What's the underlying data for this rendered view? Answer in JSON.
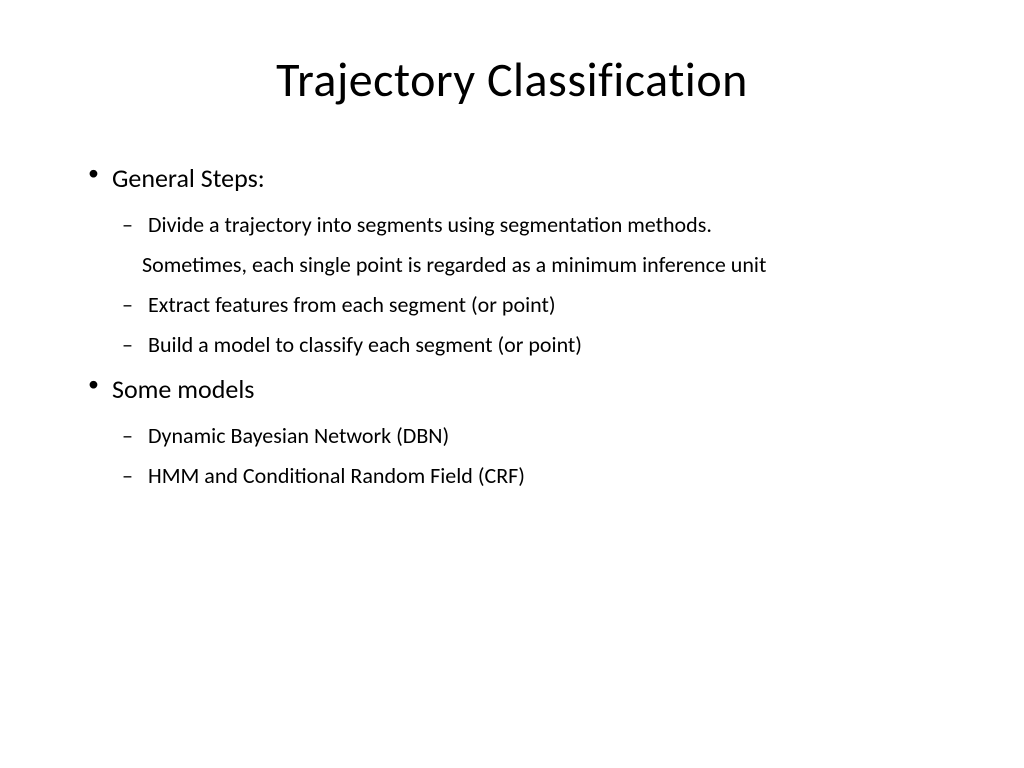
{
  "slide": {
    "title": "Trajectory Classification",
    "bullets": [
      {
        "text": "General Steps:",
        "children": [
          {
            "text": "Divide a trajectory into segments using segmentation methods.",
            "continuation": "Sometimes, each single point is regarded as a minimum inference unit"
          },
          {
            "text": "Extract features from each segment (or point)"
          },
          {
            "text": "Build a model to classify each segment (or point)"
          }
        ]
      },
      {
        "text": "Some models",
        "children": [
          {
            "text": "Dynamic Bayesian Network (DBN)"
          },
          {
            "text": "HMM and Conditional Random Field (CRF)"
          }
        ]
      }
    ]
  },
  "style": {
    "background_color": "#ffffff",
    "text_color": "#000000",
    "title_fontsize": 48,
    "l1_fontsize": 26,
    "l2_fontsize": 22,
    "font_family": "Calibri"
  }
}
